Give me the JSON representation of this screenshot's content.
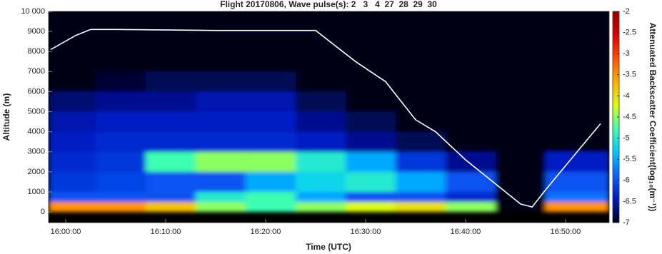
{
  "chart_data": {
    "type": "heatmap",
    "title": "Flight 20170806, Wave pulse(s): 2   3   4  27  28  29  30",
    "xlabel": "Time (UTC)",
    "ylabel": "Altitude (m)",
    "background": "#000000",
    "xlim": [
      57497,
      60862
    ],
    "xticks": [
      {
        "value": 57600,
        "label": "16:00:00"
      },
      {
        "value": 58200,
        "label": "16:10:00"
      },
      {
        "value": 58800,
        "label": "16:20:00"
      },
      {
        "value": 59400,
        "label": "16:30:00"
      },
      {
        "value": 60000,
        "label": "16:40:00"
      },
      {
        "value": 60600,
        "label": "16:50:00"
      }
    ],
    "ylim": [
      -530,
      10000
    ],
    "yticks": [
      0,
      1000,
      2000,
      3000,
      4000,
      5000,
      6000,
      7000,
      8000,
      9000,
      {
        "value": 10000,
        "label": "10 000"
      }
    ],
    "heatmap": {
      "x_edges": [
        57497,
        57780,
        58080,
        58380,
        58680,
        58980,
        59280,
        59580,
        59880,
        60180,
        60480,
        60862
      ],
      "y_edges": [
        0,
        500,
        1000,
        2000,
        3000,
        4000,
        5000,
        6000,
        7000,
        10000
      ],
      "values": [
        [
          -3.5,
          -6.0,
          -6.2,
          -6.3,
          -6.4,
          -6.5,
          -6.7,
          -7.0,
          -7.0
        ],
        [
          -3.5,
          -6.0,
          -6.1,
          -6.2,
          -6.3,
          -6.4,
          -6.6,
          -6.9,
          -7.0
        ],
        [
          -3.8,
          -6.0,
          -6.0,
          -4.8,
          -6.3,
          -6.4,
          -6.6,
          -6.8,
          -7.0
        ],
        [
          -4.5,
          -5.0,
          -6.0,
          -4.5,
          -6.3,
          -6.4,
          -6.5,
          -6.8,
          -7.0
        ],
        [
          -4.8,
          -4.8,
          -5.5,
          -4.5,
          -6.3,
          -6.4,
          -6.5,
          -6.8,
          -7.0
        ],
        [
          -4.5,
          -5.5,
          -5.2,
          -5.0,
          -6.4,
          -6.6,
          -6.8,
          -7.0,
          -7.0
        ],
        [
          -4.2,
          -6.0,
          -5.0,
          -5.5,
          -6.6,
          -6.8,
          -7.0,
          -7.0,
          -7.0
        ],
        [
          -4.0,
          -6.0,
          -5.5,
          -6.2,
          -6.8,
          -7.0,
          -7.0,
          -7.0,
          -7.0
        ],
        [
          -4.5,
          -6.3,
          -6.0,
          -6.6,
          -7.0,
          -7.0,
          -7.0,
          -7.0,
          -7.0
        ],
        [
          -7.0,
          -7.0,
          -7.0,
          -7.0,
          -7.0,
          -7.0,
          -7.0,
          -7.0,
          -7.0
        ],
        [
          -3.5,
          -5.8,
          -6.0,
          -6.4,
          -7.0,
          -7.0,
          -7.0,
          -7.0,
          -7.0
        ]
      ]
    },
    "colorbar": {
      "label": "Attenuated Backscatter Coefficient(log₁₀(m⁻¹))",
      "clim": [
        -7,
        -2
      ],
      "ticks": [
        -2,
        -2.5,
        -3,
        -3.5,
        -4,
        -4.5,
        -5,
        -5.5,
        -6,
        -6.5,
        -7
      ],
      "colormap": [
        "#000018",
        "#0018c0",
        "#0a60ff",
        "#00c8ff",
        "#40ffb0",
        "#d8ff10",
        "#ffb000",
        "#ff5000",
        "#e00000",
        "#900000"
      ]
    },
    "series": [
      {
        "color": "#ffffff",
        "x": [
          57510,
          57660,
          57750,
          57900,
          58500,
          58800,
          58980,
          59100,
          59340,
          59520,
          59700,
          59820,
          60000,
          60180,
          60330,
          60400,
          60480,
          60600,
          60810
        ],
        "values": [
          8100,
          8800,
          9100,
          9100,
          9050,
          9050,
          9050,
          9050,
          7500,
          6500,
          4600,
          4000,
          2600,
          1400,
          400,
          250,
          1100,
          2300,
          4400
        ]
      }
    ]
  }
}
